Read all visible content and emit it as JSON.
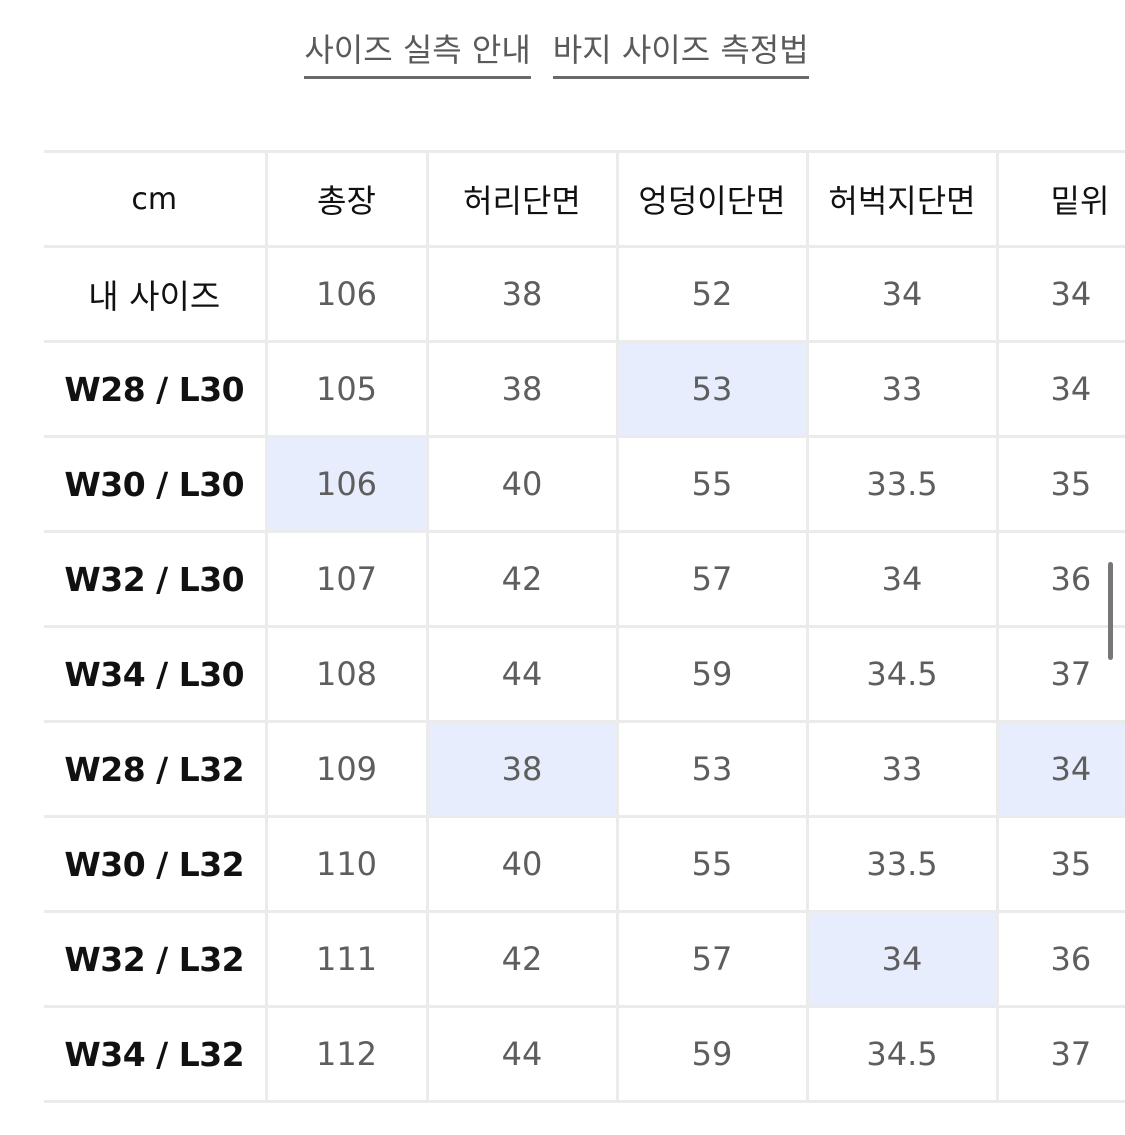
{
  "top_links": [
    {
      "label": "사이즈 실측 안내"
    },
    {
      "label": "바지 사이즈 측정법"
    }
  ],
  "table": {
    "columns": [
      "cm",
      "총장",
      "허리단면",
      "엉덩이단면",
      "허벅지단면",
      "밑위"
    ],
    "highlight_color": "#e7edfc",
    "rows": [
      {
        "label": "내 사이즈",
        "values": [
          "106",
          "38",
          "52",
          "34",
          "34"
        ],
        "highlighted": []
      },
      {
        "label": "W28 / L30",
        "values": [
          "105",
          "38",
          "53",
          "33",
          "34"
        ],
        "highlighted": [
          2
        ]
      },
      {
        "label": "W30 / L30",
        "values": [
          "106",
          "40",
          "55",
          "33.5",
          "35"
        ],
        "highlighted": [
          0
        ]
      },
      {
        "label": "W32 / L30",
        "values": [
          "107",
          "42",
          "57",
          "34",
          "36"
        ],
        "highlighted": []
      },
      {
        "label": "W34 / L30",
        "values": [
          "108",
          "44",
          "59",
          "34.5",
          "37"
        ],
        "highlighted": []
      },
      {
        "label": "W28 / L32",
        "values": [
          "109",
          "38",
          "53",
          "33",
          "34"
        ],
        "highlighted": [
          1,
          4
        ]
      },
      {
        "label": "W30 / L32",
        "values": [
          "110",
          "40",
          "55",
          "33.5",
          "35"
        ],
        "highlighted": []
      },
      {
        "label": "W32 / L32",
        "values": [
          "111",
          "42",
          "57",
          "34",
          "36"
        ],
        "highlighted": [
          3
        ]
      },
      {
        "label": "W34 / L32",
        "values": [
          "112",
          "44",
          "59",
          "34.5",
          "37"
        ],
        "highlighted": []
      }
    ]
  },
  "chart_data": {
    "type": "table",
    "title": "",
    "unit": "cm",
    "columns": [
      "총장",
      "허리단면",
      "엉덩이단면",
      "허벅지단면",
      "밑위"
    ],
    "rows": [
      {
        "size": "내 사이즈",
        "values": [
          106,
          38,
          52,
          34,
          34
        ]
      },
      {
        "size": "W28 / L30",
        "values": [
          105,
          38,
          53,
          33,
          34
        ]
      },
      {
        "size": "W30 / L30",
        "values": [
          106,
          40,
          55,
          33.5,
          35
        ]
      },
      {
        "size": "W32 / L30",
        "values": [
          107,
          42,
          57,
          34,
          36
        ]
      },
      {
        "size": "W34 / L30",
        "values": [
          108,
          44,
          59,
          34.5,
          37
        ]
      },
      {
        "size": "W28 / L32",
        "values": [
          109,
          38,
          53,
          33,
          34
        ]
      },
      {
        "size": "W30 / L32",
        "values": [
          110,
          40,
          55,
          33.5,
          35
        ]
      },
      {
        "size": "W32 / L32",
        "values": [
          111,
          42,
          57,
          34,
          36
        ]
      },
      {
        "size": "W34 / L32",
        "values": [
          112,
          44,
          59,
          34.5,
          37
        ]
      }
    ]
  }
}
